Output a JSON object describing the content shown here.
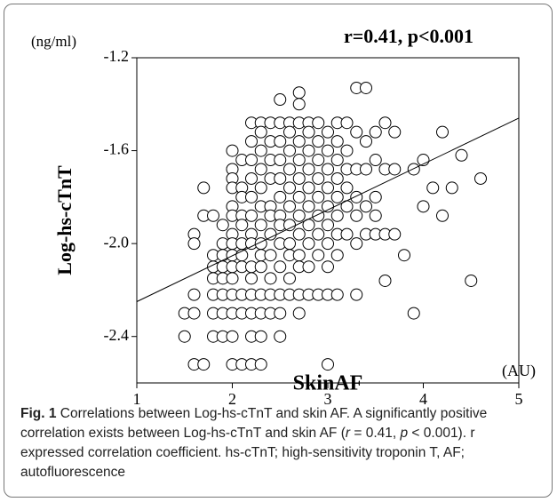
{
  "chart_data": {
    "type": "scatter",
    "title": "r=0.41, p<0.001",
    "y_unit": "(ng/ml)",
    "x_unit": "(AU)",
    "xlabel": "SkinAF",
    "ylabel": "Log-hs-cTnT",
    "xlim": [
      1,
      5
    ],
    "ylim": [
      -2.6,
      -1.2
    ],
    "xticks": [
      1,
      2,
      3,
      4,
      5
    ],
    "yticks": [
      -1.2,
      -1.6,
      {
        "value": -2,
        "label": "-2.0"
      },
      -2.4
    ],
    "color": "#000000",
    "fit_line": {
      "x": [
        1,
        5
      ],
      "y": [
        -2.25,
        -1.46
      ]
    },
    "x": [
      1.5,
      1.5,
      1.6,
      1.6,
      1.6,
      1.6,
      1.6,
      1.7,
      1.7,
      1.7,
      1.8,
      1.8,
      1.8,
      1.8,
      1.8,
      1.8,
      1.8,
      1.9,
      1.9,
      1.9,
      1.9,
      1.9,
      1.9,
      1.9,
      1.9,
      2,
      2,
      2,
      2,
      2,
      2,
      2,
      2,
      2,
      2,
      2,
      2,
      2,
      2,
      2,
      2.1,
      2.1,
      2.1,
      2.1,
      2.1,
      2.1,
      2.1,
      2.1,
      2.1,
      2.1,
      2.1,
      2.2,
      2.2,
      2.2,
      2.2,
      2.2,
      2.2,
      2.2,
      2.2,
      2.2,
      2.2,
      2.2,
      2.2,
      2.2,
      2.2,
      2.3,
      2.3,
      2.3,
      2.3,
      2.3,
      2.3,
      2.3,
      2.3,
      2.3,
      2.3,
      2.3,
      2.3,
      2.3,
      2.3,
      2.4,
      2.4,
      2.4,
      2.4,
      2.4,
      2.4,
      2.4,
      2.4,
      2.4,
      2.4,
      2.4,
      2.5,
      2.5,
      2.5,
      2.5,
      2.5,
      2.5,
      2.5,
      2.5,
      2.5,
      2.5,
      2.5,
      2.5,
      2.5,
      2.6,
      2.6,
      2.6,
      2.6,
      2.6,
      2.6,
      2.6,
      2.6,
      2.6,
      2.6,
      2.6,
      2.7,
      2.7,
      2.7,
      2.7,
      2.7,
      2.7,
      2.7,
      2.7,
      2.7,
      2.7,
      2.7,
      2.7,
      2.7,
      2.8,
      2.8,
      2.8,
      2.8,
      2.8,
      2.8,
      2.8,
      2.8,
      2.8,
      2.8,
      2.9,
      2.9,
      2.9,
      2.9,
      2.9,
      2.9,
      2.9,
      2.9,
      2.9,
      3,
      3,
      3,
      3,
      3,
      3,
      3,
      3,
      3,
      3,
      3.1,
      3.1,
      3.1,
      3.1,
      3.1,
      3.1,
      3.1,
      3.1,
      3.1,
      3.2,
      3.2,
      3.2,
      3.2,
      3.2,
      3.2,
      3.3,
      3.3,
      3.3,
      3.3,
      3.3,
      3.3,
      3.3,
      3.4,
      3.4,
      3.4,
      3.4,
      3.4,
      3.5,
      3.5,
      3.5,
      3.5,
      3.5,
      3.6,
      3.6,
      3.6,
      3.6,
      3.7,
      3.7,
      3.7,
      3.8,
      3.9,
      3.9,
      4,
      4,
      4.1,
      4.2,
      4.2,
      4.3,
      4.4,
      4.5,
      4.6
    ],
    "values": [
      -2.3,
      -2.4,
      -1.96,
      -2,
      -2.22,
      -2.3,
      -2.52,
      -1.76,
      -1.88,
      -2.52,
      -1.88,
      -2.1,
      -2.15,
      -2.22,
      -2.3,
      -2.4,
      -2.05,
      -1.92,
      -2,
      -2.05,
      -2.1,
      -2.15,
      -2.22,
      -2.3,
      -2.4,
      -1.6,
      -1.68,
      -1.72,
      -1.76,
      -1.84,
      -1.88,
      -1.96,
      -2,
      -2.05,
      -2.1,
      -2.15,
      -2.22,
      -2.3,
      -2.4,
      -2.52,
      -1.64,
      -1.76,
      -1.8,
      -1.88,
      -1.92,
      -2,
      -2.05,
      -2.1,
      -2.22,
      -2.3,
      -2.52,
      -1.48,
      -1.56,
      -1.64,
      -1.72,
      -1.8,
      -1.88,
      -1.96,
      -2,
      -2.1,
      -2.15,
      -2.22,
      -2.3,
      -2.4,
      -2.52,
      -1.48,
      -1.52,
      -1.6,
      -1.68,
      -1.76,
      -1.84,
      -1.92,
      -2,
      -2.05,
      -2.1,
      -2.22,
      -2.3,
      -2.4,
      -2.52,
      -1.48,
      -1.56,
      -1.64,
      -1.72,
      -1.84,
      -1.88,
      -1.96,
      -2.05,
      -2.15,
      -2.22,
      -2.3,
      -1.38,
      -1.48,
      -1.56,
      -1.64,
      -1.72,
      -1.8,
      -1.88,
      -1.92,
      -2,
      -2.1,
      -2.22,
      -2.3,
      -2.4,
      -1.48,
      -1.52,
      -1.6,
      -1.68,
      -1.76,
      -1.84,
      -1.92,
      -2,
      -2.05,
      -2.15,
      -2.22,
      -1.35,
      -1.4,
      -1.48,
      -1.56,
      -1.64,
      -1.72,
      -1.8,
      -1.88,
      -1.96,
      -2.05,
      -2.1,
      -2.22,
      -2.3,
      -1.48,
      -1.52,
      -1.6,
      -1.68,
      -1.76,
      -1.84,
      -1.92,
      -2,
      -2.1,
      -2.22,
      -1.48,
      -1.56,
      -1.64,
      -1.72,
      -1.8,
      -1.88,
      -1.96,
      -2.05,
      -2.22,
      -1.52,
      -1.6,
      -1.68,
      -1.76,
      -1.84,
      -1.92,
      -2,
      -2.1,
      -2.22,
      -2.52,
      -1.48,
      -1.56,
      -1.64,
      -1.72,
      -1.8,
      -1.88,
      -1.96,
      -2.05,
      -2.22,
      -1.48,
      -1.6,
      -1.68,
      -1.76,
      -1.84,
      -1.96,
      -1.33,
      -1.52,
      -1.68,
      -1.8,
      -1.88,
      -2,
      -2.22,
      -1.33,
      -1.56,
      -1.68,
      -1.84,
      -1.96,
      -1.52,
      -1.64,
      -1.8,
      -1.88,
      -1.96,
      -1.48,
      -1.68,
      -1.96,
      -2.16,
      -1.52,
      -1.68,
      -1.96,
      -2.05,
      -1.68,
      -2.3,
      -1.64,
      -1.84,
      -1.76,
      -1.52,
      -1.88,
      -1.76,
      -1.62,
      -2.16,
      -1.72
    ]
  },
  "caption": {
    "label": "Fig. 1",
    "parts": [
      "Correlations between Log-hs-cTnT and skin AF. A significantly positive correlation exists between Log-hs-cTnT and skin AF (",
      "r",
      " = 0.41, ",
      "p",
      " < 0.001). r expressed correlation coefficient. hs-cTnT; high-sensitivity troponin T, AF; autofluorescence"
    ]
  }
}
